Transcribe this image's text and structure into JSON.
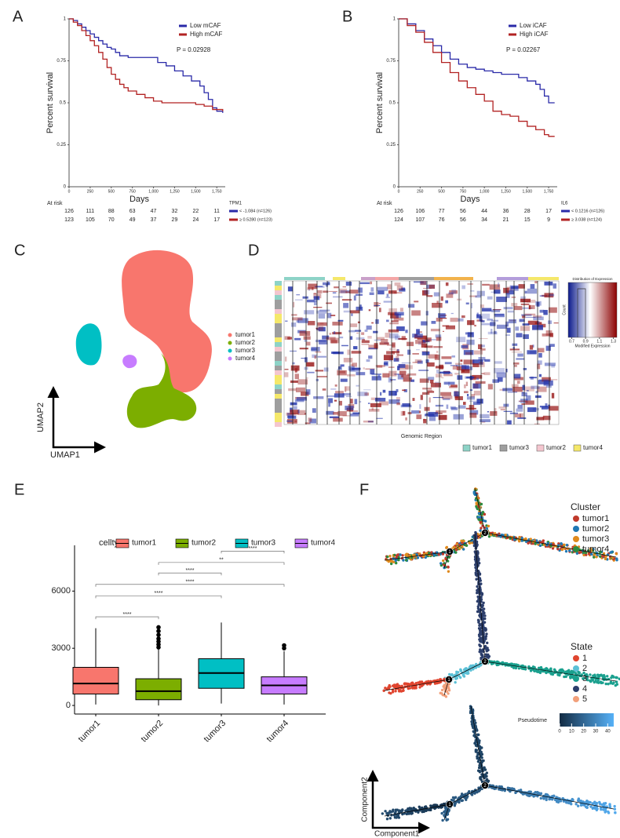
{
  "chart_data": [
    {
      "panel": "A",
      "type": "km",
      "xlabel": "Days",
      "ylabel": "Percent survival",
      "xlim": [
        0,
        1850
      ],
      "xticks": [
        0,
        250,
        500,
        750,
        {
          "value": 1000,
          "label": "1,000"
        },
        {
          "value": 1250,
          "label": "1,250"
        },
        {
          "value": 1500,
          "label": "1,500"
        },
        {
          "value": 1750,
          "label": "1,750"
        }
      ],
      "ylim": [
        0,
        1
      ],
      "yticks": [
        0,
        0.25,
        0.5,
        0.75,
        1
      ],
      "annotation": "P = 0.02928",
      "series": [
        {
          "name": "Low mCAF",
          "color": "#2a2aa8",
          "x": [
            0,
            50,
            100,
            150,
            200,
            250,
            300,
            350,
            400,
            450,
            500,
            550,
            600,
            700,
            800,
            900,
            1000,
            1050,
            1150,
            1250,
            1350,
            1450,
            1550,
            1600,
            1650,
            1700,
            1750,
            1820
          ],
          "values": [
            1,
            0.99,
            0.97,
            0.95,
            0.93,
            0.91,
            0.89,
            0.87,
            0.85,
            0.83,
            0.82,
            0.8,
            0.78,
            0.77,
            0.77,
            0.77,
            0.77,
            0.74,
            0.72,
            0.69,
            0.66,
            0.63,
            0.6,
            0.56,
            0.52,
            0.47,
            0.45,
            0.44
          ]
        },
        {
          "name": "High mCAF",
          "color": "#b22222",
          "x": [
            0,
            50,
            100,
            150,
            200,
            250,
            300,
            350,
            400,
            450,
            500,
            550,
            600,
            650,
            700,
            800,
            900,
            1000,
            1100,
            1300,
            1500,
            1600,
            1700,
            1750,
            1820
          ],
          "values": [
            1,
            0.98,
            0.96,
            0.93,
            0.9,
            0.87,
            0.84,
            0.8,
            0.76,
            0.71,
            0.67,
            0.64,
            0.61,
            0.59,
            0.57,
            0.55,
            0.53,
            0.51,
            0.5,
            0.5,
            0.49,
            0.48,
            0.46,
            0.46,
            0.45
          ]
        }
      ],
      "risk_table": {
        "title": "At risk",
        "variable": "TPM1",
        "rows": [
          {
            "label": "< -1.084 (n=126)",
            "counts": [
              126,
              111,
              88,
              63,
              47,
              32,
              22,
              11
            ]
          },
          {
            "label": "≥ 0.5280 (n=123)",
            "counts": [
              123,
              105,
              70,
              49,
              37,
              29,
              24,
              17
            ]
          }
        ]
      }
    },
    {
      "panel": "B",
      "type": "km",
      "xlabel": "Days",
      "ylabel": "Percent survival",
      "xlim": [
        0,
        1850
      ],
      "xticks": [
        0,
        250,
        500,
        750,
        {
          "value": 1000,
          "label": "1,000"
        },
        {
          "value": 1250,
          "label": "1,250"
        },
        {
          "value": 1500,
          "label": "1,500"
        },
        {
          "value": 1750,
          "label": "1,750"
        }
      ],
      "ylim": [
        0,
        1
      ],
      "yticks": [
        0,
        0.25,
        0.5,
        0.75,
        1
      ],
      "annotation": "P = 0.02267",
      "series": [
        {
          "name": "Low iCAF",
          "color": "#2a2aa8",
          "x": [
            0,
            100,
            200,
            300,
            400,
            500,
            600,
            700,
            800,
            900,
            1000,
            1100,
            1200,
            1300,
            1400,
            1500,
            1600,
            1650,
            1700,
            1750,
            1820
          ],
          "values": [
            1,
            0.97,
            0.93,
            0.88,
            0.84,
            0.8,
            0.76,
            0.73,
            0.71,
            0.7,
            0.69,
            0.68,
            0.67,
            0.67,
            0.65,
            0.63,
            0.61,
            0.58,
            0.54,
            0.5,
            0.5
          ]
        },
        {
          "name": "High iCAF",
          "color": "#b22222",
          "x": [
            0,
            100,
            200,
            300,
            400,
            500,
            600,
            700,
            800,
            900,
            1000,
            1100,
            1200,
            1300,
            1400,
            1500,
            1600,
            1700,
            1750,
            1820
          ],
          "values": [
            1,
            0.96,
            0.92,
            0.86,
            0.8,
            0.74,
            0.68,
            0.63,
            0.59,
            0.55,
            0.51,
            0.45,
            0.43,
            0.42,
            0.39,
            0.36,
            0.34,
            0.31,
            0.3,
            0.3
          ]
        }
      ],
      "risk_table": {
        "title": "At risk",
        "variable": "IL6",
        "rows": [
          {
            "label": "< 0.1216 (n=126)",
            "counts": [
              126,
              106,
              77,
              56,
              44,
              36,
              28,
              17
            ]
          },
          {
            "label": "≥ 3.038 (n=124)",
            "counts": [
              124,
              107,
              76,
              56,
              34,
              21,
              15,
              9
            ]
          }
        ]
      }
    },
    {
      "panel": "C",
      "type": "umap",
      "xlabel": "UMAP1",
      "ylabel": "UMAP2",
      "series": [
        {
          "name": "tumor1",
          "color": "#f8766d"
        },
        {
          "name": "tumor2",
          "color": "#7cae00"
        },
        {
          "name": "tumor3",
          "color": "#00bfc4"
        },
        {
          "name": "tumor4",
          "color": "#c77cff"
        }
      ]
    },
    {
      "panel": "D",
      "type": "heatmap",
      "xlabel": "Genomic Region",
      "series": [
        {
          "name": "tumor1",
          "color": "#8dd3c7"
        },
        {
          "name": "tumor3",
          "color": "#9e9e9e"
        },
        {
          "name": "tumor2",
          "color": "#f4c6cf"
        },
        {
          "name": "tumor4",
          "color": "#f5e86a"
        }
      ],
      "color_key": {
        "title": "Distribution of Expression",
        "xlabel": "Modified Expression",
        "ylabel": "Count",
        "lim": [
          0.65,
          1.35
        ],
        "ticks": [
          0.7,
          0.9,
          1.1,
          1.3
        ]
      }
    },
    {
      "panel": "E",
      "type": "box",
      "legend_title": "celltype",
      "categories": [
        "tumor1",
        "tumor2",
        "tumor3",
        "tumor4"
      ],
      "colors": [
        "#f8766d",
        "#7cae00",
        "#00bfc4",
        "#c77cff"
      ],
      "ylim": [
        -450,
        8400
      ],
      "yticks": [
        0,
        3000,
        6000
      ],
      "boxes": [
        {
          "min": 50,
          "q1": 600,
          "median": 1150,
          "q3": 2000,
          "max": 4050,
          "outliers": []
        },
        {
          "min": 0,
          "q1": 300,
          "median": 750,
          "q3": 1400,
          "max": 2950,
          "outliers": [
            3050,
            3200,
            3350,
            3500,
            3700,
            3900,
            4100
          ]
        },
        {
          "min": 100,
          "q1": 900,
          "median": 1700,
          "q3": 2450,
          "max": 4350,
          "outliers": []
        },
        {
          "min": 50,
          "q1": 600,
          "median": 1050,
          "q3": 1500,
          "max": 2850,
          "outliers": [
            3000,
            3150
          ]
        }
      ],
      "comparisons": [
        {
          "pair": [
            2,
            3
          ],
          "y": 8100,
          "label": "****"
        },
        {
          "pair": [
            1,
            3
          ],
          "y": 7500,
          "label": "**"
        },
        {
          "pair": [
            1,
            2
          ],
          "y": 6950,
          "label": "****"
        },
        {
          "pair": [
            0,
            3
          ],
          "y": 6350,
          "label": "****"
        },
        {
          "pair": [
            0,
            2
          ],
          "y": 5750,
          "label": "****"
        },
        {
          "pair": [
            0,
            1
          ],
          "y": 4650,
          "label": "****"
        }
      ]
    },
    {
      "panel": "F",
      "type": "trajectory",
      "xlabel": "Component1",
      "ylabel": "Component2",
      "nodes": [
        "1",
        "2"
      ],
      "legends": [
        {
          "title": "Cluster",
          "series": [
            {
              "name": "tumor1",
              "color": "#c0392b"
            },
            {
              "name": "tumor2",
              "color": "#1f78b4"
            },
            {
              "name": "tumor3",
              "color": "#e08a1e"
            },
            {
              "name": "tumor4",
              "color": "#2e8b3e"
            }
          ]
        },
        {
          "title": "State",
          "series": [
            {
              "name": "1",
              "color": "#e0452f"
            },
            {
              "name": "2",
              "color": "#5bc0d6"
            },
            {
              "name": "3",
              "color": "#1aa08e"
            },
            {
              "name": "4",
              "color": "#2c3e6b"
            },
            {
              "name": "5",
              "color": "#f2a07b"
            }
          ]
        }
      ],
      "colorbar": {
        "label": "Pseudotime",
        "lim": [
          0,
          45
        ],
        "ticks": [
          0,
          10,
          20,
          30,
          40
        ]
      }
    }
  ]
}
